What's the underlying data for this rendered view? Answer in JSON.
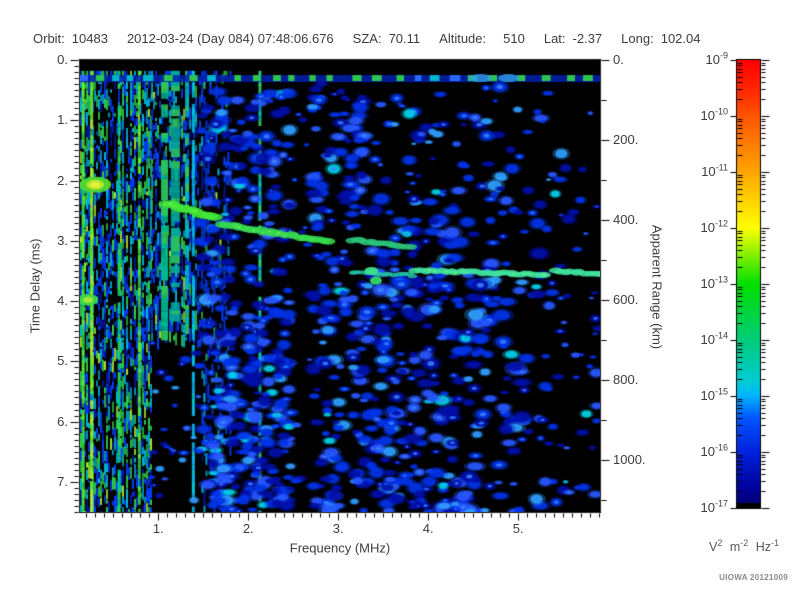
{
  "header": {
    "orbit_label": "Orbit:",
    "orbit_value": "10483",
    "datetime": "2012-03-24 (Day 084) 07:48:06.676",
    "sza_label": "SZA:",
    "sza_value": "70.11",
    "altitude_label": "Altitude:",
    "altitude_value": "510",
    "lat_label": "Lat:",
    "lat_value": "-2.37",
    "long_label": "Long:",
    "long_value": "102.04"
  },
  "watermark": "UIOWA 20121009",
  "chart_data": {
    "type": "heatmap",
    "subtype": "radar-sounder-ionogram",
    "xlabel": "Frequency (MHz)",
    "ylabel_left": "Time Delay (ms)",
    "ylabel_right": "Apparent Range (km)",
    "x_range_mhz": [
      0.13,
      5.91
    ],
    "y_range_ms": [
      0,
      7.5
    ],
    "y2_range_km": [
      0,
      1130
    ],
    "x_ticks": [
      1,
      2,
      3,
      4,
      5
    ],
    "x_tick_labels": [
      "1.",
      "2.",
      "3.",
      "4.",
      "5."
    ],
    "x_minor_step": 0.1,
    "y_ticks": [
      0,
      1,
      2,
      3,
      4,
      5,
      6,
      7
    ],
    "y_tick_labels": [
      "0.",
      "1.",
      "2.",
      "3.",
      "4.",
      "5.",
      "6.",
      "7."
    ],
    "y_minor_step": 0.1,
    "y2_ticks": [
      0,
      200,
      400,
      600,
      800,
      1000
    ],
    "y2_tick_labels": [
      "0.",
      "200.",
      "400.",
      "600.",
      "800.",
      "1000."
    ],
    "y2_minor_step": 100,
    "background": "#000000",
    "colorbar": {
      "tick_exponents": [
        -9,
        -10,
        -11,
        -12,
        -13,
        -14,
        -15,
        -16,
        -17
      ],
      "base": "10",
      "units": [
        [
          "V",
          "2"
        ],
        [
          "m",
          "-2"
        ],
        [
          "Hz",
          "-1"
        ]
      ],
      "gradient": [
        [
          0.0,
          "#ff0000"
        ],
        [
          0.07,
          "#ff2a00"
        ],
        [
          0.125,
          "#ff5500"
        ],
        [
          0.25,
          "#ffa500"
        ],
        [
          0.375,
          "#ffff00"
        ],
        [
          0.5,
          "#00e000"
        ],
        [
          0.625,
          "#00cc7a"
        ],
        [
          0.72,
          "#00ccd8"
        ],
        [
          0.75,
          "#00b4ff"
        ],
        [
          0.8,
          "#0055ff"
        ],
        [
          0.875,
          "#0022dd"
        ],
        [
          0.96,
          "#000099"
        ],
        [
          1.0,
          "#000066"
        ]
      ]
    },
    "noise_colors": {
      "yellow": "#b8e82a",
      "green": "#2ecc4e",
      "cyan": "#00b4dc",
      "blue": "#0040ff",
      "dark": "#0016a8"
    },
    "blob_palette": [
      [
        0.33,
        "#000fa8"
      ],
      [
        0.68,
        "#0033e8"
      ],
      [
        0.88,
        "#2757ff"
      ],
      [
        0.96,
        "#2f9fff"
      ],
      [
        1.0,
        "#00cfe8"
      ]
    ],
    "pulse": {
      "base": "#0020b0",
      "dashes": [
        [
          0.55,
          "#2fcf4a"
        ],
        [
          0.8,
          "#00bfd0"
        ],
        [
          1.0,
          "#2f6bff"
        ]
      ],
      "pale": "#2f9fe8"
    },
    "features": [
      {
        "type": "noise",
        "f": [
          0.13,
          0.92
        ],
        "ms": [
          0.18,
          7.5
        ],
        "i0": 1.0,
        "i1": 0.8
      },
      {
        "type": "noise",
        "f": [
          0.92,
          1.48
        ],
        "ms": [
          0.18,
          4.65
        ],
        "i0": 0.75,
        "i1": 0.45
      },
      {
        "type": "noise",
        "f": [
          1.48,
          1.8
        ],
        "ms": [
          0.18,
          7.5
        ],
        "i0": 0.4,
        "i1": 0.3
      },
      {
        "type": "vline",
        "f": 0.165,
        "w": 3,
        "ms": [
          0.18,
          7.5
        ],
        "duty": 0.95,
        "colors": [
          "#2ed94a",
          "#5bee33"
        ]
      },
      {
        "type": "vline",
        "f": 0.26,
        "w": 3,
        "ms": [
          0.18,
          7.5
        ],
        "duty": 0.9,
        "colors": [
          "#b5e822",
          "#66e822"
        ]
      },
      {
        "type": "vline",
        "f": 0.565,
        "w": 3,
        "ms": [
          0.18,
          7.5
        ],
        "duty": 0.8,
        "colors": [
          "#2ed94a",
          "#00cc88"
        ]
      },
      {
        "type": "vline",
        "f": 0.79,
        "w": 3,
        "ms": [
          0.18,
          7.5
        ],
        "duty": 0.85,
        "colors": [
          "#5bee33",
          "#2eb84a"
        ]
      },
      {
        "type": "vline",
        "f": 1.07,
        "w": 7,
        "ms": [
          0.18,
          4.6
        ],
        "duty": 0.75,
        "colors": [
          "#2fc95c",
          "#00b894"
        ]
      },
      {
        "type": "vline",
        "f": 1.19,
        "w": 9,
        "ms": [
          0.18,
          4.3
        ],
        "duty": 0.65,
        "colors": [
          "#2bbf63",
          "#00a89c"
        ]
      },
      {
        "type": "vline",
        "f": 1.32,
        "w": 4,
        "ms": [
          0.18,
          4.6
        ],
        "duty": 0.7,
        "colors": [
          "#2fc95c",
          "#00b4cc"
        ]
      },
      {
        "type": "vline",
        "f": 1.39,
        "w": 3,
        "ms": [
          0.18,
          7.5
        ],
        "duty": 0.85,
        "colors": [
          "#00ccdd",
          "#00b8ee"
        ]
      },
      {
        "type": "vline",
        "f": 2.13,
        "w": 3,
        "ms": [
          0.18,
          7.5
        ],
        "duty": 0.75,
        "colors": [
          "#00c9bb",
          "#2ed966"
        ]
      },
      {
        "type": "band",
        "f": [
          2.47,
          2.71
        ],
        "ms": [
          0.35,
          7.5
        ],
        "color": "#000000"
      },
      {
        "type": "blobs",
        "f": [
          1.45,
          2.47
        ],
        "ms": [
          0.4,
          7.5
        ],
        "n": 280,
        "r": [
          3,
          7
        ]
      },
      {
        "type": "blobs",
        "f": [
          1.45,
          2.47
        ],
        "ms": [
          4.6,
          7.5
        ],
        "n": 110,
        "r": [
          3,
          7
        ]
      },
      {
        "type": "blobs",
        "f": [
          2.47,
          2.71
        ],
        "ms": [
          0.5,
          7.4
        ],
        "n": 10,
        "r": [
          2,
          4
        ]
      },
      {
        "type": "blobs",
        "f": [
          2.71,
          3.3
        ],
        "ms": [
          0.4,
          7.5
        ],
        "n": 160,
        "r": [
          3,
          7
        ]
      },
      {
        "type": "blobs",
        "f": [
          3.3,
          4.35
        ],
        "ms": [
          2.3,
          7.5
        ],
        "n": 210,
        "r": [
          3,
          8
        ]
      },
      {
        "type": "blobs",
        "f": [
          4.35,
          5.25
        ],
        "ms": [
          2.3,
          7.5
        ],
        "n": 120,
        "r": [
          3,
          8
        ]
      },
      {
        "type": "blobs",
        "f": [
          5.25,
          5.91
        ],
        "ms": [
          2.3,
          7.5
        ],
        "n": 55,
        "r": [
          2,
          6
        ]
      },
      {
        "type": "blobs",
        "f": [
          3.0,
          5.91
        ],
        "ms": [
          0.4,
          2.3
        ],
        "n": 90,
        "r": [
          2,
          7
        ]
      },
      {
        "type": "blobs",
        "f": [
          0.92,
          1.48
        ],
        "ms": [
          4.65,
          7.5
        ],
        "n": 28,
        "r": [
          2,
          5
        ]
      },
      {
        "type": "blobs",
        "f": [
          1.5,
          4.6
        ],
        "ms": [
          6.85,
          7.5
        ],
        "n": 70,
        "r": [
          3,
          7
        ]
      },
      {
        "type": "pulse",
        "ms": 0.3
      },
      {
        "type": "trace",
        "p": [
          [
            1.1,
            2.38
          ],
          [
            1.62,
            2.62
          ]
        ],
        "w": 9,
        "core": true,
        "color": "#3fe636"
      },
      {
        "type": "trace",
        "p": [
          [
            1.7,
            2.72
          ],
          [
            2.9,
            3.02
          ]
        ],
        "w": 8,
        "core": true,
        "color": "#36d94d"
      },
      {
        "type": "trace",
        "p": [
          [
            3.16,
            2.98
          ],
          [
            3.8,
            3.1
          ]
        ],
        "w": 7,
        "core": false,
        "color": "#2bc47a"
      },
      {
        "type": "trace",
        "p": [
          [
            3.15,
            3.52
          ],
          [
            3.83,
            3.57
          ]
        ],
        "w": 5,
        "core": false,
        "color": "#22bfa0"
      },
      {
        "type": "trace",
        "p": [
          [
            3.87,
            3.49
          ],
          [
            5.3,
            3.56
          ]
        ],
        "w": 7,
        "core": true,
        "color": "#41e3a0"
      },
      {
        "type": "trace",
        "p": [
          [
            5.42,
            3.5
          ],
          [
            5.9,
            3.55
          ]
        ],
        "w": 7,
        "core": false,
        "color": "#41e3a0"
      },
      {
        "type": "spot",
        "f": 0.3,
        "ms": 2.07,
        "layers": [
          [
            "#4fd933",
            16,
            8
          ],
          [
            "#b5e82a",
            9,
            5
          ],
          [
            "#e8f03c",
            5,
            3
          ]
        ]
      },
      {
        "type": "spot",
        "f": 0.22,
        "ms": 3.98,
        "layers": [
          [
            "#3fd944",
            10,
            6
          ],
          [
            "#a8e833",
            5,
            3
          ]
        ]
      },
      {
        "type": "spot",
        "f": 3.37,
        "ms": 3.5,
        "layers": [
          [
            "#3fe08c",
            7,
            4
          ]
        ]
      },
      {
        "type": "spot",
        "f": 3.42,
        "ms": 3.66,
        "layers": [
          [
            "#35d96a",
            6,
            4
          ]
        ]
      }
    ]
  }
}
